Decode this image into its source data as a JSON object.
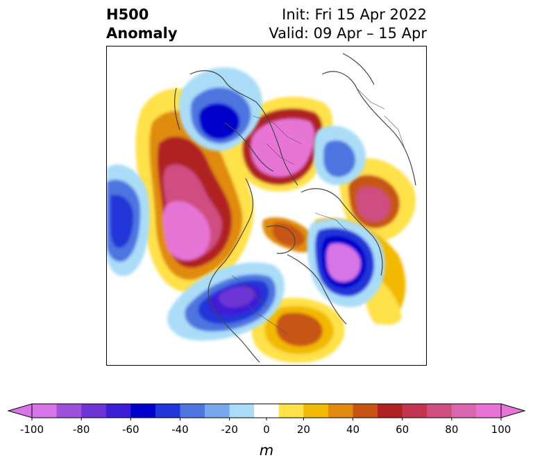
{
  "title": {
    "variable": "H500",
    "kind": "Anomaly",
    "init": "Init: Fri 15 Apr 2022",
    "valid": "Valid: 09 Apr – 15 Apr"
  },
  "colorbar": {
    "unit": "m",
    "tick_labels": [
      "-100",
      "-80",
      "-60",
      "-40",
      "-20",
      "0",
      "20",
      "40",
      "60",
      "80",
      "100"
    ],
    "bins": [
      -100,
      -90,
      -80,
      -70,
      -60,
      -50,
      -40,
      -30,
      -20,
      -10,
      10,
      20,
      30,
      40,
      50,
      60,
      70,
      80,
      90,
      100
    ],
    "colors": [
      "#d775e8",
      "#9e52dc",
      "#6e35d6",
      "#3d1ed6",
      "#0000cc",
      "#2235d8",
      "#4e74e0",
      "#76a8ee",
      "#aadcf8",
      "#ffffff",
      "#ffe14a",
      "#f2b905",
      "#e08b10",
      "#c75412",
      "#b02222",
      "#c33450",
      "#cf4e80",
      "#db66b0",
      "#e774d6"
    ],
    "extend_low_color": "#d775e8",
    "extend_high_color": "#e774d6"
  },
  "map": {
    "projection": "polar stereographic (north)",
    "field": "500 hPa geopotential height anomaly"
  }
}
